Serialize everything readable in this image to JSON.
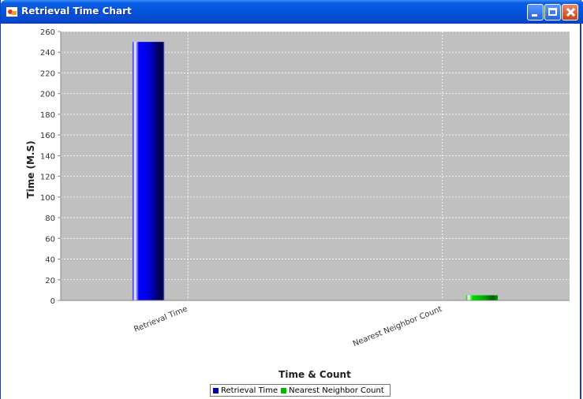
{
  "window": {
    "title": "Retrieval Time Chart"
  },
  "chart_data": {
    "type": "bar",
    "categories": [
      "Retrieval Time",
      "Nearest Neighbor Count"
    ],
    "series": [
      {
        "name": "Retrieval Time",
        "color": "#0000ff",
        "values": [
          250,
          0
        ]
      },
      {
        "name": "Nearest Neighbor Count",
        "color": "#00cc00",
        "values": [
          0,
          5
        ]
      }
    ],
    "xlabel": "Time & Count",
    "ylabel": "Time (M.S)",
    "ylim": [
      0,
      260
    ],
    "yticks": [
      0,
      20,
      40,
      60,
      80,
      100,
      120,
      140,
      160,
      180,
      200,
      220,
      240,
      260
    ],
    "grid": true,
    "legend_position": "bottom"
  }
}
